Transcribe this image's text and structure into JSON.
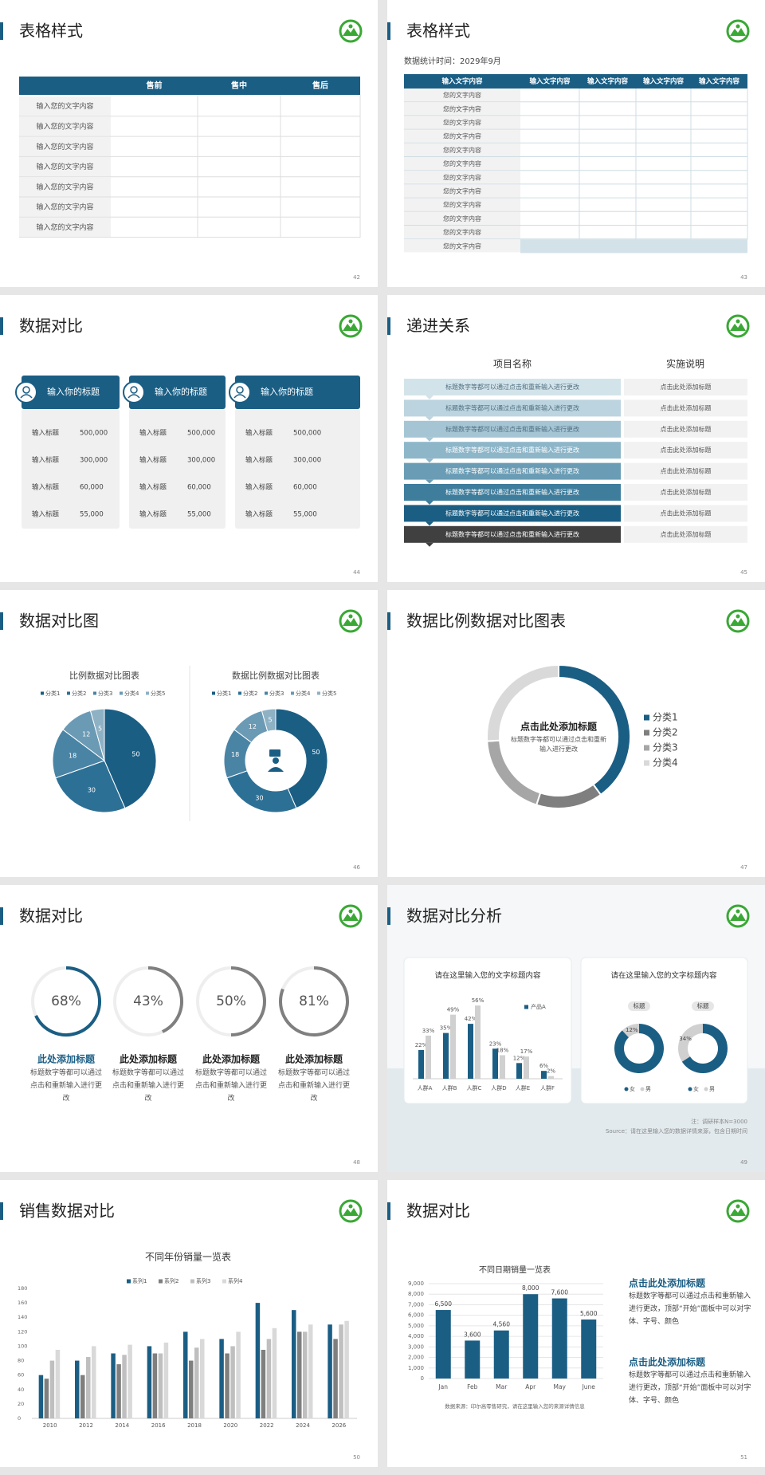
{
  "slides": [
    {
      "title": "表格样式",
      "page": "42",
      "table": {
        "columns": [
          "售前",
          "售中",
          "售后"
        ],
        "rows": [
          "输入您的文字内容",
          "输入您的文字内容",
          "输入您的文字内容",
          "输入您的文字内容",
          "输入您的文字内容",
          "输入您的文字内容",
          "输入您的文字内容"
        ]
      }
    },
    {
      "title": "表格样式",
      "page": "43",
      "subtitle": "数据统计时间：2029年9月",
      "table": {
        "columns": [
          "输入文字内容",
          "输入文字内容",
          "输入文字内容",
          "输入文字内容",
          "输入文字内容"
        ],
        "rows": [
          "您的文字内容",
          "您的文字内容",
          "您的文字内容",
          "您的文字内容",
          "您的文字内容",
          "您的文字内容",
          "您的文字内容",
          "您的文字内容",
          "您的文字内容",
          "您的文字内容",
          "您的文字内容",
          "您的文字内容"
        ]
      }
    },
    {
      "title": "数据对比",
      "page": "44",
      "cards": [
        {
          "title": "输入你的标题",
          "items": [
            {
              "label": "输入标题",
              "value": "500,000"
            },
            {
              "label": "输入标题",
              "value": "300,000"
            },
            {
              "label": "输入标题",
              "value": "60,000"
            },
            {
              "label": "输入标题",
              "value": "55,000"
            }
          ]
        },
        {
          "title": "输入你的标题",
          "items": [
            {
              "label": "输入标题",
              "value": "500,000"
            },
            {
              "label": "输入标题",
              "value": "300,000"
            },
            {
              "label": "输入标题",
              "value": "60,000"
            },
            {
              "label": "输入标题",
              "value": "55,000"
            }
          ]
        },
        {
          "title": "输入你的标题",
          "items": [
            {
              "label": "输入标题",
              "value": "500,000"
            },
            {
              "label": "输入标题",
              "value": "300,000"
            },
            {
              "label": "输入标题",
              "value": "60,000"
            },
            {
              "label": "输入标题",
              "value": "55,000"
            }
          ]
        }
      ]
    },
    {
      "title": "递进关系",
      "page": "45",
      "columns": [
        "项目名称",
        "实施说明"
      ],
      "rows": [
        {
          "item": "标题数字等都可以通过点击和重新输入进行更改",
          "note": "点击此处添加标题"
        },
        {
          "item": "标题数字等都可以通过点击和重新输入进行更改",
          "note": "点击此处添加标题"
        },
        {
          "item": "标题数字等都可以通过点击和重新输入进行更改",
          "note": "点击此处添加标题"
        },
        {
          "item": "标题数字等都可以通过点击和重新输入进行更改",
          "note": "点击此处添加标题"
        },
        {
          "item": "标题数字等都可以通过点击和重新输入进行更改",
          "note": "点击此处添加标题"
        },
        {
          "item": "标题数字等都可以通过点击和重新输入进行更改",
          "note": "点击此处添加标题"
        },
        {
          "item": "标题数字等都可以通过点击和重新输入进行更改",
          "note": "点击此处添加标题"
        },
        {
          "item": "标题数字等都可以通过点击和重新输入进行更改",
          "note": "点击此处添加标题"
        }
      ]
    },
    {
      "title": "数据对比图",
      "page": "46",
      "charts": [
        {
          "type": "pie",
          "title": "比例数据对比图表",
          "categories": [
            "分类1",
            "分类2",
            "分类3",
            "分类4",
            "分类5"
          ],
          "values": [
            50,
            30,
            18,
            12,
            5
          ],
          "colors": [
            "#1b5e84",
            "#2d7096",
            "#4a84a5",
            "#6b9ab5",
            "#8eb1c4"
          ]
        },
        {
          "type": "donut",
          "title": "数据比例数据对比图表",
          "categories": [
            "分类1",
            "分类2",
            "分类3",
            "分类4",
            "分类5"
          ],
          "values": [
            50,
            30,
            18,
            12,
            5
          ],
          "colors": [
            "#1b5e84",
            "#2d7096",
            "#4a84a5",
            "#6b9ab5",
            "#8eb1c4"
          ]
        }
      ]
    },
    {
      "title": "数据比例数据对比图表",
      "page": "47",
      "chart_data": {
        "type": "donut",
        "title": "点击此处添加标题",
        "subtitle": "标题数字等都可以通过点击和重新输入进行更改",
        "categories": [
          "分类1",
          "分类2",
          "分类3",
          "分类4"
        ],
        "values": [
          40,
          15,
          19,
          26
        ],
        "colors": [
          "#1b5e84",
          "#7f7f7f",
          "#a6a6a6",
          "#d9d9d9"
        ]
      }
    },
    {
      "title": "数据对比",
      "page": "48",
      "items": [
        {
          "value": 68,
          "value_label": "68%",
          "color": "#1b5e84",
          "title": "此处添加标题",
          "text": "标题数字等都可以通过点击和重新输入进行更改"
        },
        {
          "value": 43,
          "value_label": "43%",
          "color": "#7f7f7f",
          "title": "此处添加标题",
          "text": "标题数字等都可以通过点击和重新输入进行更改"
        },
        {
          "value": 50,
          "value_label": "50%",
          "color": "#7f7f7f",
          "title": "此处添加标题",
          "text": "标题数字等都可以通过点击和重新输入进行更改"
        },
        {
          "value": 81,
          "value_label": "81%",
          "color": "#7f7f7f",
          "title": "此处添加标题",
          "text": "标题数字等都可以通过点击和重新输入进行更改"
        }
      ]
    },
    {
      "title": "数据对比分析",
      "page": "49",
      "bar_card": {
        "title": "请在这里输入您的文字标题内容",
        "chart_data": {
          "type": "bar",
          "categories": [
            "人群A",
            "人群B",
            "人群C",
            "人群D",
            "人群E",
            "人群F"
          ],
          "series": [
            {
              "name": "产品A",
              "color": "#1b5e84",
              "values": [
                22,
                35,
                42,
                23,
                12,
                6
              ],
              "value_labels": [
                "22%",
                "35%",
                "42%",
                "23%",
                "12%",
                "6%"
              ]
            },
            {
              "color": "#d0d0d0",
              "values": [
                33,
                49,
                56,
                18,
                17,
                2
              ],
              "value_labels": [
                "33%",
                "49%",
                "56%",
                "18%",
                "17%",
                "2%"
              ]
            }
          ]
        }
      },
      "donut_card": {
        "title": "请在这里输入您的文字标题内容",
        "legend": [
          "女",
          "男"
        ],
        "colors": [
          "#1b5e84",
          "#d0d0d0"
        ],
        "donuts": [
          {
            "label": "标题",
            "value": 12,
            "value_label": "12%"
          },
          {
            "label": "标题",
            "value": 34,
            "value_label": "34%"
          }
        ]
      },
      "note": "注：调研样本N=3000",
      "source": "Source：请在这里输入您的数据详情来源，包含日期时间"
    },
    {
      "title": "销售数据对比",
      "page": "50",
      "chart_data": {
        "type": "bar",
        "title": "不同年份销量一览表",
        "categories": [
          "2010",
          "2012",
          "2014",
          "2016",
          "2018",
          "2020",
          "2022",
          "2024",
          "2026"
        ],
        "series": [
          {
            "name": "系列1",
            "color": "#1b5e84",
            "values": [
              60,
              80,
              90,
              100,
              120,
              110,
              160,
              150,
              130
            ]
          },
          {
            "name": "系列2",
            "color": "#7f7f7f",
            "values": [
              55,
              60,
              75,
              90,
              80,
              90,
              95,
              120,
              110
            ]
          },
          {
            "name": "系列3",
            "color": "#bfbfbf",
            "values": [
              80,
              85,
              88,
              90,
              98,
              100,
              110,
              120,
              130
            ]
          },
          {
            "name": "系列4",
            "color": "#d9d9d9",
            "values": [
              95,
              100,
              102,
              105,
              110,
              120,
              125,
              130,
              135
            ]
          }
        ],
        "ylim": [
          0,
          180
        ],
        "yticks": [
          0,
          20,
          40,
          60,
          80,
          100,
          120,
          140,
          160,
          180
        ]
      }
    },
    {
      "title": "数据对比",
      "page": "51",
      "chart_data": {
        "type": "bar",
        "title": "不同日期销量一览表",
        "categories": [
          "Jan",
          "Feb",
          "Mar",
          "Apr",
          "May",
          "June"
        ],
        "values": [
          6500,
          3600,
          4560,
          8000,
          7600,
          5600
        ],
        "value_labels": [
          "6,500",
          "3,600",
          "4,560",
          "8,000",
          "7,600",
          "5,600"
        ],
        "color": "#1b5e84",
        "ylim": [
          0,
          9000
        ],
        "yticks": [
          0,
          {
            "value": 1000,
            "label": "1,000"
          },
          {
            "value": 2000,
            "label": "2,000"
          },
          {
            "value": 3000,
            "label": "3,000"
          },
          {
            "value": 4000,
            "label": "4,000"
          },
          {
            "value": 5000,
            "label": "5,000"
          },
          {
            "value": 6000,
            "label": "6,000"
          },
          {
            "value": 7000,
            "label": "7,000"
          },
          {
            "value": 8000,
            "label": "8,000"
          },
          {
            "value": 9000,
            "label": "9,000"
          }
        ],
        "grid": true,
        "source": "数据来源：印尔高零售研究，请在这里输入您的来源详情信息"
      },
      "blocks": [
        {
          "title": "点击此处添加标题",
          "text": "标题数字等都可以通过点击和重新输入进行更改，顶部“开始”面板中可以对字体、字号、颜色"
        },
        {
          "title": "点击此处添加标题",
          "text": "标题数字等都可以通过点击和重新输入进行更改，顶部“开始”面板中可以对字体、字号、颜色"
        }
      ]
    }
  ]
}
